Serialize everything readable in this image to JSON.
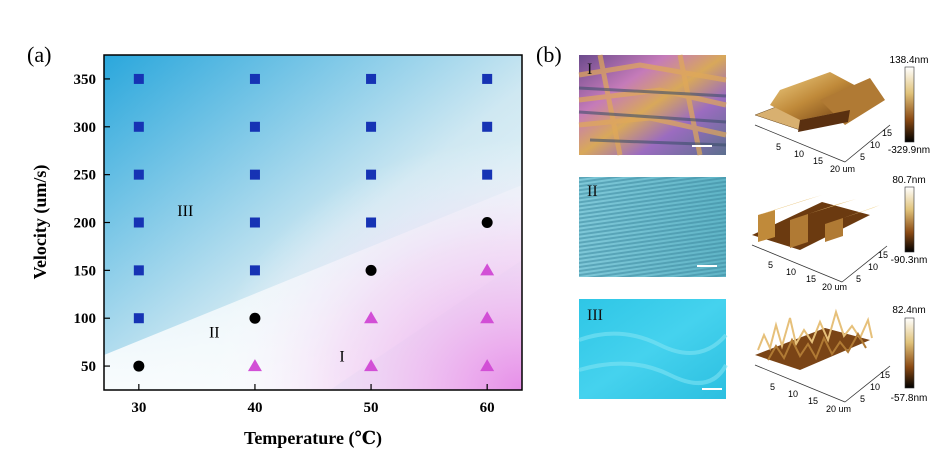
{
  "panel_a": {
    "label": "(a)"
  },
  "panel_b": {
    "label": "(b)"
  },
  "chart_data": {
    "type": "scatter",
    "xlabel": "Temperature (℃)",
    "ylabel": "Velocity (um/s)",
    "xlim": [
      27,
      63
    ],
    "ylim": [
      25,
      375
    ],
    "xticks": [
      30,
      40,
      50,
      60
    ],
    "yticks": [
      50,
      100,
      150,
      200,
      250,
      300,
      350
    ],
    "grid": false,
    "series": [
      {
        "marker": "square",
        "color": "#1633b4",
        "points": [
          [
            30,
            350
          ],
          [
            30,
            300
          ],
          [
            30,
            250
          ],
          [
            30,
            200
          ],
          [
            30,
            150
          ],
          [
            30,
            100
          ],
          [
            40,
            350
          ],
          [
            40,
            300
          ],
          [
            40,
            250
          ],
          [
            40,
            200
          ],
          [
            40,
            150
          ],
          [
            50,
            350
          ],
          [
            50,
            300
          ],
          [
            50,
            250
          ],
          [
            50,
            200
          ],
          [
            60,
            350
          ],
          [
            60,
            300
          ],
          [
            60,
            250
          ]
        ]
      },
      {
        "marker": "circle",
        "color": "#000000",
        "points": [
          [
            30,
            50
          ],
          [
            40,
            100
          ],
          [
            50,
            150
          ],
          [
            60,
            200
          ]
        ]
      },
      {
        "marker": "triangle",
        "color": "#d24fd6",
        "points": [
          [
            40,
            50
          ],
          [
            50,
            50
          ],
          [
            50,
            100
          ],
          [
            60,
            50
          ],
          [
            60,
            100
          ],
          [
            60,
            150
          ]
        ]
      }
    ],
    "annotations": [
      {
        "text": "III",
        "x": 34,
        "y": 207
      },
      {
        "text": "II",
        "x": 36.5,
        "y": 80
      },
      {
        "text": "I",
        "x": 47.5,
        "y": 55
      }
    ]
  },
  "micrographs": [
    {
      "label": "I"
    },
    {
      "label": "II"
    },
    {
      "label": "III"
    }
  ],
  "afm": [
    {
      "max": "138.4nm",
      "min": "-329.9nm",
      "x_ticks": [
        "5",
        "10",
        "15",
        "20 um"
      ],
      "y_ticks": [
        "5",
        "10",
        "15"
      ]
    },
    {
      "max": "80.7nm",
      "min": "-90.3nm",
      "x_ticks": [
        "5",
        "10",
        "15",
        "20 um"
      ],
      "y_ticks": [
        "5",
        "10",
        "15"
      ]
    },
    {
      "max": "82.4nm",
      "min": "-57.8nm",
      "x_ticks": [
        "5",
        "10",
        "15",
        "20 um"
      ],
      "y_ticks": [
        "5",
        "10",
        "15"
      ]
    }
  ]
}
